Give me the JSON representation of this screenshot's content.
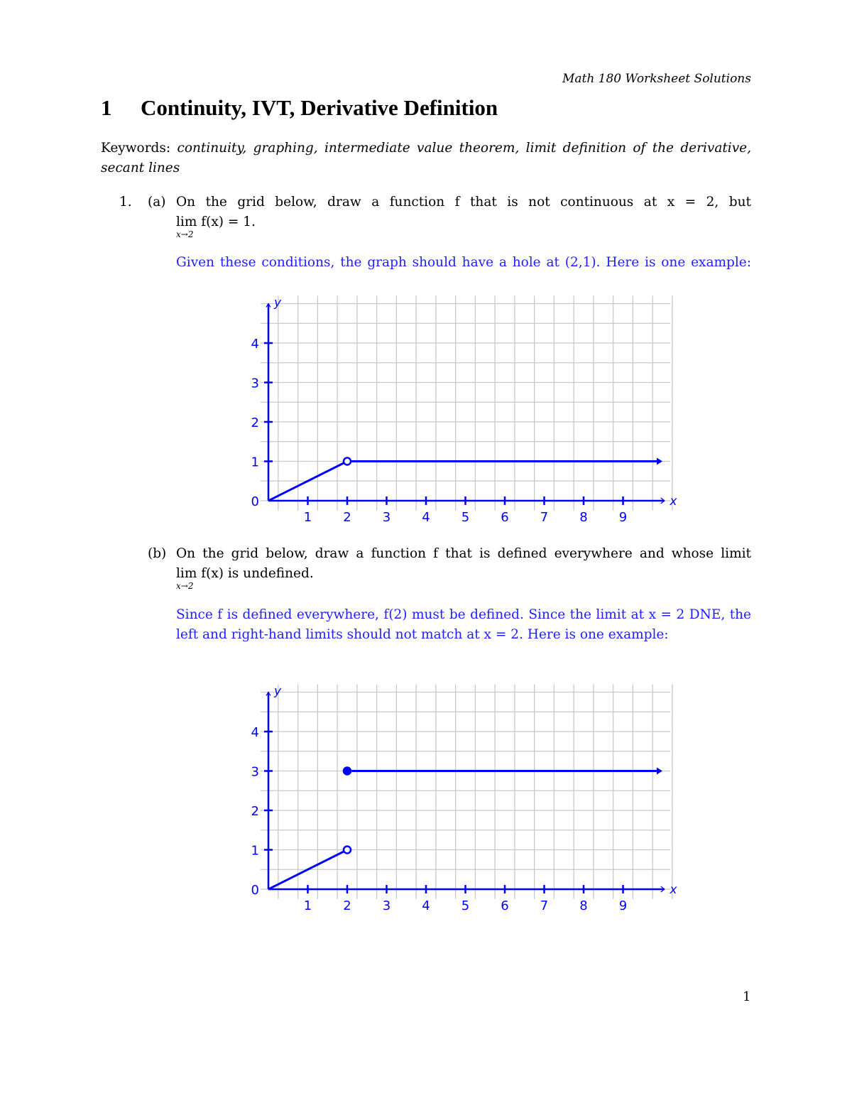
{
  "header": {
    "running_title": "Math 180 Worksheet Solutions"
  },
  "section": {
    "number": "1",
    "title": "Continuity, IVT, Derivative Definition"
  },
  "keywords": {
    "label": "Keywords:",
    "items": "continuity, graphing, intermediate value theorem, limit definition of the derivative, secant lines"
  },
  "problem": {
    "number": "1.",
    "a": {
      "label": "(a)",
      "text": "On the grid below, draw a function f that is not continuous at x = 2, but",
      "lim": "lim",
      "lim_sub": "x→2",
      "lim_rest": "f(x) = 1.",
      "answer": "Given these conditions, the graph should have a hole at (2,1). Here is one example:"
    },
    "b": {
      "label": "(b)",
      "text": "On the grid below, draw a function f that is defined everywhere and whose limit",
      "lim": "lim",
      "lim_sub": "x→2",
      "lim_rest": "f(x) is undefined.",
      "answer": "Since f is defined everywhere, f(2) must be defined. Since the limit at x = 2 DNE, the left and right-hand limits should not match at x = 2. Here is one example:"
    }
  },
  "chart_data": [
    {
      "type": "line",
      "xlabel": "x",
      "ylabel": "y",
      "xlim": [
        0,
        10
      ],
      "ylim": [
        0,
        5
      ],
      "grid": true,
      "x_ticks": [
        "1",
        "2",
        "3",
        "4",
        "5",
        "6",
        "7",
        "8",
        "9"
      ],
      "y_ticks": [
        "0",
        "1",
        "2",
        "3",
        "4"
      ],
      "segments": [
        {
          "from": [
            0,
            0
          ],
          "to": [
            2,
            1
          ]
        },
        {
          "from": [
            2,
            1
          ],
          "to": [
            10,
            1
          ],
          "arrow": true
        }
      ],
      "points": [
        {
          "x": 2,
          "y": 1,
          "style": "open"
        }
      ],
      "color": "#0000ff"
    },
    {
      "type": "line",
      "xlabel": "x",
      "ylabel": "y",
      "xlim": [
        0,
        10
      ],
      "ylim": [
        0,
        5
      ],
      "grid": true,
      "x_ticks": [
        "1",
        "2",
        "3",
        "4",
        "5",
        "6",
        "7",
        "8",
        "9"
      ],
      "y_ticks": [
        "0",
        "1",
        "2",
        "3",
        "4"
      ],
      "segments": [
        {
          "from": [
            0,
            0
          ],
          "to": [
            2,
            1
          ]
        },
        {
          "from": [
            2,
            3
          ],
          "to": [
            10,
            3
          ],
          "arrow": true
        }
      ],
      "points": [
        {
          "x": 2,
          "y": 1,
          "style": "open"
        },
        {
          "x": 2,
          "y": 3,
          "style": "filled"
        }
      ],
      "color": "#0000ff"
    }
  ],
  "page_number": "1"
}
